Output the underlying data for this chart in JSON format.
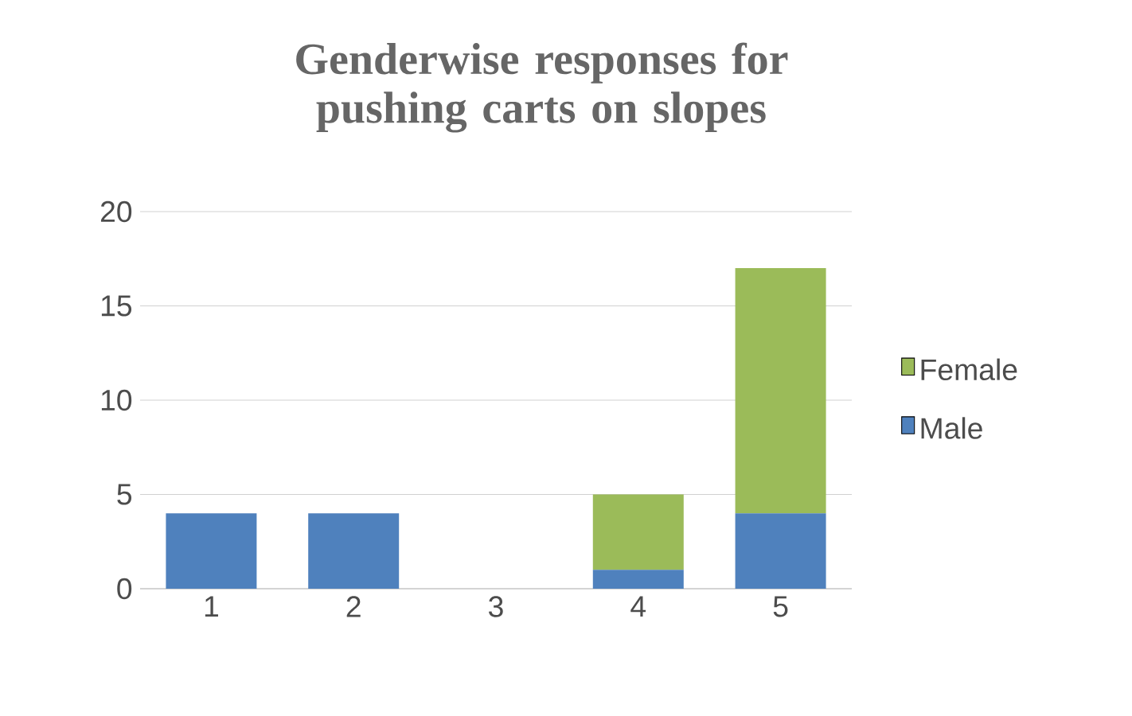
{
  "chart_data": {
    "type": "bar",
    "title": "Genderwise responses for pushing carts on slopes",
    "categories": [
      "1",
      "2",
      "3",
      "4",
      "5"
    ],
    "stacked": true,
    "series": [
      {
        "name": "Male",
        "color": "#4f81bd",
        "values": [
          4,
          4,
          0,
          1,
          4
        ]
      },
      {
        "name": "Female",
        "color": "#9bbb59",
        "values": [
          0,
          0,
          0,
          4,
          13
        ]
      }
    ],
    "ylim": [
      0,
      20
    ],
    "yticks": [
      0,
      5,
      10,
      15,
      20
    ],
    "grid": "y",
    "legend": "right"
  }
}
